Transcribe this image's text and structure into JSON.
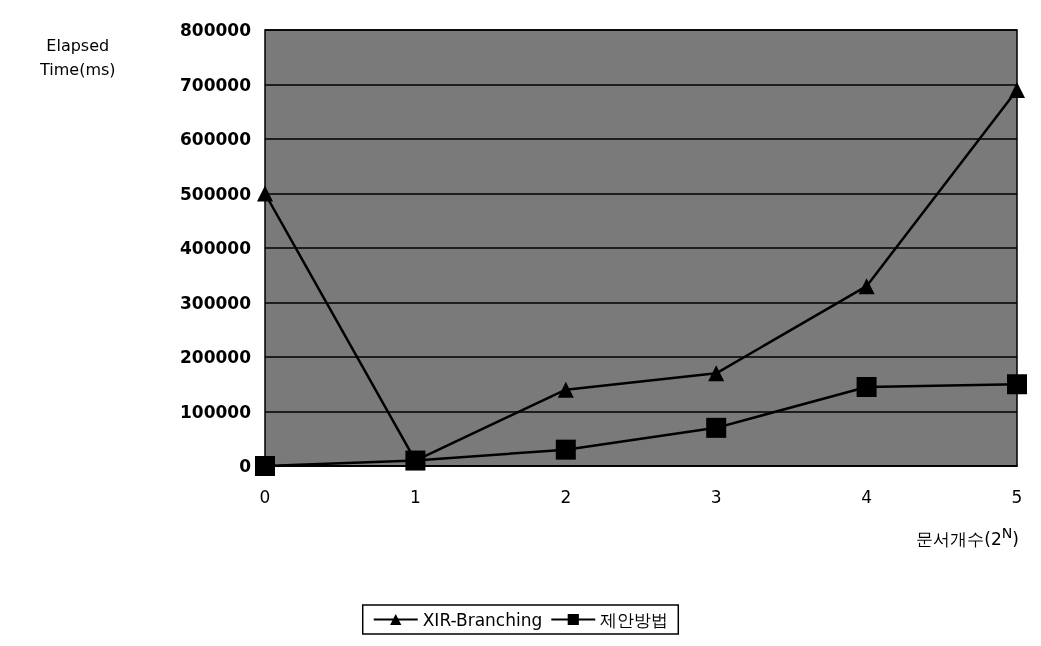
{
  "chart_data": {
    "type": "line",
    "xlabel": "문서개수(2$^{N}$)",
    "ylabel": "Elapsed\nTime(ms)",
    "categories": [
      "0",
      "1",
      "2",
      "3",
      "4",
      "5"
    ],
    "series": [
      {
        "name": "XIR-Branching",
        "color": "#000000",
        "marker": "triangle",
        "values": [
          500000,
          10000,
          140000,
          170000,
          330000,
          690000
        ]
      },
      {
        "name": "제안방법",
        "color": "#000000",
        "marker": "square",
        "values": [
          0,
          10000,
          30000,
          70000,
          145000,
          150000
        ]
      }
    ],
    "ylim": [
      0,
      800000
    ],
    "yticks": [
      0,
      100000,
      200000,
      300000,
      400000,
      500000,
      600000,
      700000,
      800000
    ],
    "grid": "y",
    "legend": "bottom",
    "line_style": "solid"
  }
}
